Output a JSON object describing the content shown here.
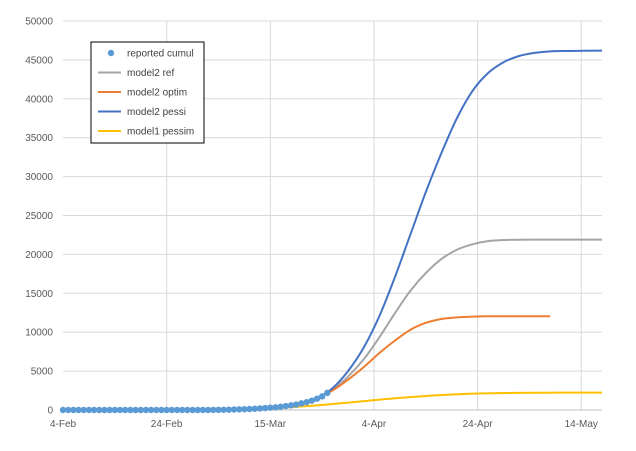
{
  "chart_data": {
    "type": "line",
    "title": "",
    "xlabel": "",
    "ylabel": "",
    "ylim": [
      0,
      50000
    ],
    "yticks": [
      0,
      5000,
      10000,
      15000,
      20000,
      25000,
      30000,
      35000,
      40000,
      45000,
      50000
    ],
    "xlim": [
      "2020-02-04",
      "2020-05-18"
    ],
    "xticks": [
      {
        "date": "2020-02-04",
        "label": "4-Feb"
      },
      {
        "date": "2020-02-24",
        "label": "24-Feb"
      },
      {
        "date": "2020-03-15",
        "label": "15-Mar"
      },
      {
        "date": "2020-04-04",
        "label": "4-Apr"
      },
      {
        "date": "2020-04-24",
        "label": "24-Apr"
      },
      {
        "date": "2020-05-14",
        "label": "14-May"
      }
    ],
    "grid": true,
    "legend_position": "top-left",
    "series": [
      {
        "name": "reported cumul",
        "style": "markers",
        "color": "#5B9BD5",
        "x": [
          "2020-02-04",
          "2020-02-05",
          "2020-02-06",
          "2020-02-07",
          "2020-02-08",
          "2020-02-09",
          "2020-02-10",
          "2020-02-11",
          "2020-02-12",
          "2020-02-13",
          "2020-02-14",
          "2020-02-15",
          "2020-02-16",
          "2020-02-17",
          "2020-02-18",
          "2020-02-19",
          "2020-02-20",
          "2020-02-21",
          "2020-02-22",
          "2020-02-23",
          "2020-02-24",
          "2020-02-25",
          "2020-02-26",
          "2020-02-27",
          "2020-02-28",
          "2020-02-29",
          "2020-03-01",
          "2020-03-02",
          "2020-03-03",
          "2020-03-04",
          "2020-03-05",
          "2020-03-06",
          "2020-03-07",
          "2020-03-08",
          "2020-03-09",
          "2020-03-10",
          "2020-03-11",
          "2020-03-12",
          "2020-03-13",
          "2020-03-14",
          "2020-03-15",
          "2020-03-16",
          "2020-03-17",
          "2020-03-18",
          "2020-03-19",
          "2020-03-20",
          "2020-03-21",
          "2020-03-22",
          "2020-03-23",
          "2020-03-24",
          "2020-03-25",
          "2020-03-26"
        ],
        "values": [
          0,
          0,
          0,
          0,
          0,
          0,
          0,
          0,
          0,
          0,
          0,
          0,
          0,
          0,
          0,
          0,
          0,
          0,
          0,
          0,
          0,
          0,
          0,
          0,
          0,
          0,
          0,
          0,
          0,
          10,
          20,
          30,
          40,
          60,
          80,
          100,
          130,
          160,
          200,
          250,
          300,
          350,
          420,
          500,
          600,
          700,
          850,
          1000,
          1200,
          1450,
          1750,
          2200
        ]
      },
      {
        "name": "model2 ref",
        "style": "line",
        "color": "#A5A5A5",
        "x": [
          "2020-03-08",
          "2020-03-13",
          "2020-03-18",
          "2020-03-21",
          "2020-03-24",
          "2020-03-27",
          "2020-03-30",
          "2020-04-02",
          "2020-04-05",
          "2020-04-08",
          "2020-04-11",
          "2020-04-14",
          "2020-04-17",
          "2020-04-20",
          "2020-04-23",
          "2020-04-26",
          "2020-04-29",
          "2020-05-04",
          "2020-05-10",
          "2020-05-18"
        ],
        "values": [
          0,
          100,
          400,
          800,
          1500,
          2600,
          4300,
          6500,
          9300,
          12400,
          15300,
          17600,
          19400,
          20600,
          21300,
          21700,
          21850,
          21900,
          21900,
          21900
        ]
      },
      {
        "name": "model2 optim",
        "style": "line",
        "color": "#ED7D31",
        "x": [
          "2020-03-08",
          "2020-03-13",
          "2020-03-18",
          "2020-03-21",
          "2020-03-24",
          "2020-03-27",
          "2020-03-30",
          "2020-04-02",
          "2020-04-05",
          "2020-04-08",
          "2020-04-11",
          "2020-04-14",
          "2020-04-17",
          "2020-04-20",
          "2020-04-23",
          "2020-04-26",
          "2020-05-01",
          "2020-05-08"
        ],
        "values": [
          0,
          100,
          400,
          800,
          1500,
          2500,
          3900,
          5500,
          7300,
          8900,
          10300,
          11200,
          11700,
          11900,
          12000,
          12050,
          12050,
          12050
        ]
      },
      {
        "name": "model2 pessi",
        "style": "line",
        "color": "#4472C4",
        "x": [
          "2020-03-08",
          "2020-03-13",
          "2020-03-18",
          "2020-03-21",
          "2020-03-24",
          "2020-03-27",
          "2020-03-30",
          "2020-04-02",
          "2020-04-05",
          "2020-04-08",
          "2020-04-11",
          "2020-04-14",
          "2020-04-17",
          "2020-04-20",
          "2020-04-23",
          "2020-04-26",
          "2020-04-29",
          "2020-05-02",
          "2020-05-05",
          "2020-05-08",
          "2020-05-12",
          "2020-05-18"
        ],
        "values": [
          0,
          100,
          400,
          800,
          1500,
          2800,
          5000,
          8000,
          12000,
          17000,
          22500,
          28000,
          33000,
          37500,
          41000,
          43300,
          44700,
          45500,
          45900,
          46100,
          46150,
          46200
        ]
      },
      {
        "name": "model1 pessim",
        "style": "line",
        "color": "#FFC000",
        "x": [
          "2020-03-08",
          "2020-03-14",
          "2020-03-18",
          "2020-03-22",
          "2020-03-26",
          "2020-03-30",
          "2020-04-03",
          "2020-04-07",
          "2020-04-11",
          "2020-04-15",
          "2020-04-19",
          "2020-04-23",
          "2020-04-27",
          "2020-05-01",
          "2020-05-06",
          "2020-05-12",
          "2020-05-18"
        ],
        "values": [
          0,
          100,
          300,
          500,
          700,
          950,
          1200,
          1450,
          1650,
          1850,
          2000,
          2100,
          2150,
          2200,
          2220,
          2230,
          2230
        ]
      }
    ]
  }
}
